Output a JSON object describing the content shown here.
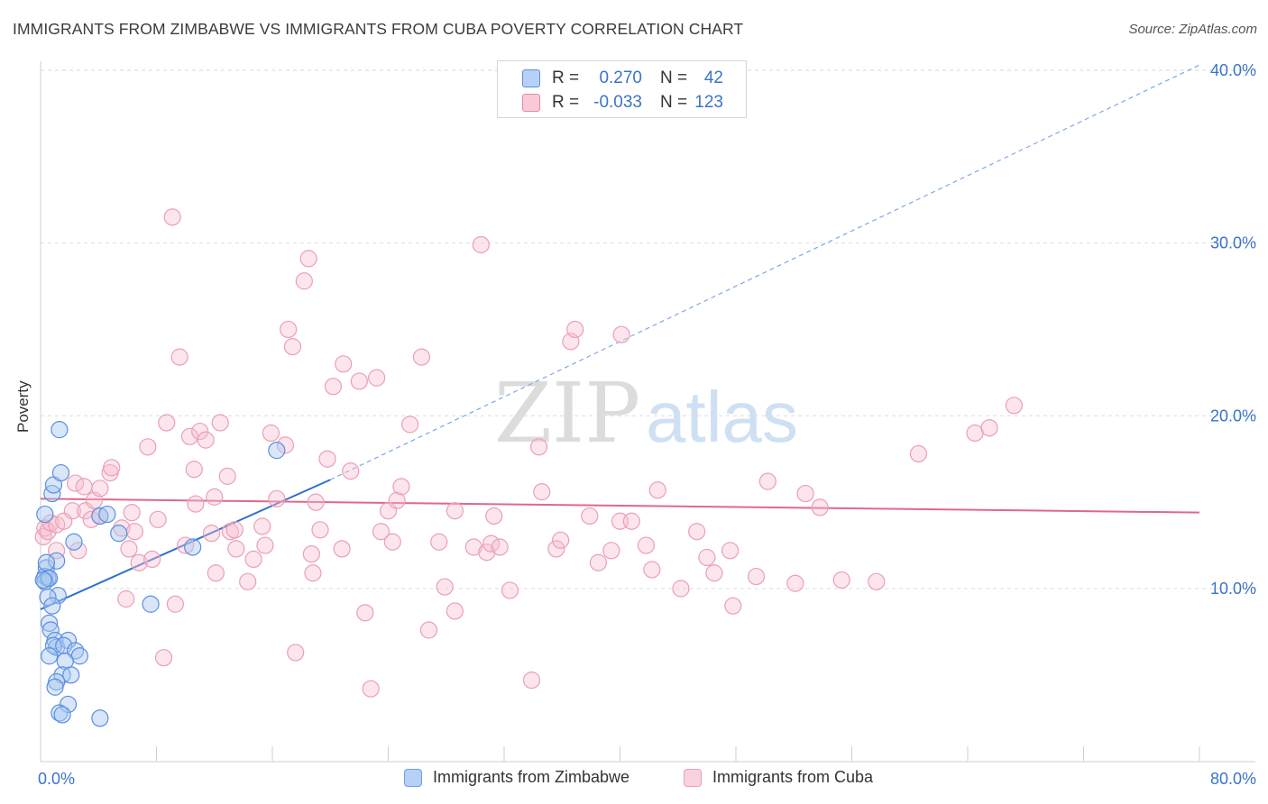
{
  "title": "IMMIGRANTS FROM ZIMBABWE VS IMMIGRANTS FROM CUBA POVERTY CORRELATION CHART",
  "source": "Source: ZipAtlas.com",
  "watermark": {
    "zip": "ZIP",
    "atlas": "atlas"
  },
  "stats": [
    {
      "r_label": "R =",
      "r_value": "0.270",
      "n_label": "N =",
      "n_value": "42",
      "color": "#5b8fe0",
      "fill": "#b7d0f5"
    },
    {
      "r_label": "R =",
      "r_value": "-0.033",
      "n_label": "N =",
      "n_value": "123",
      "color": "#e48aa6",
      "fill": "#f9c9d7"
    }
  ],
  "chart_data": {
    "type": "scatter",
    "title": "IMMIGRANTS FROM ZIMBABWE VS IMMIGRANTS FROM CUBA POVERTY CORRELATION CHART",
    "xlabel": "",
    "ylabel": "Poverty",
    "xlim": [
      0,
      80
    ],
    "ylim": [
      0,
      42
    ],
    "x_tick_labels": [
      "0.0%",
      "80.0%"
    ],
    "y_ticks": [
      10,
      20,
      30,
      40
    ],
    "y_tick_labels": [
      "10.0%",
      "20.0%",
      "30.0%",
      "40.0%"
    ],
    "grid": true,
    "legend_position": "bottom",
    "series": [
      {
        "name": "Immigrants from Zimbabwe",
        "color": "#3f7fd8",
        "fill": "#a9c7f0",
        "r": 0.27,
        "n": 42,
        "trend": {
          "x0": 0,
          "y0": 8.8,
          "x1": 20,
          "y1": 16.3,
          "dashed_to_x": 80,
          "dashed_to_y": 40.3
        },
        "points": [
          [
            0.3,
            14.3
          ],
          [
            0.4,
            11.2
          ],
          [
            0.3,
            10.7
          ],
          [
            0.5,
            10.6
          ],
          [
            0.3,
            10.4
          ],
          [
            0.6,
            10.6
          ],
          [
            0.8,
            15.5
          ],
          [
            0.9,
            16.0
          ],
          [
            1.1,
            11.6
          ],
          [
            1.2,
            9.6
          ],
          [
            0.5,
            9.5
          ],
          [
            0.8,
            9.0
          ],
          [
            0.6,
            8.0
          ],
          [
            0.7,
            7.6
          ],
          [
            1.0,
            7.0
          ],
          [
            1.1,
            6.6
          ],
          [
            0.9,
            6.7
          ],
          [
            1.9,
            7.0
          ],
          [
            1.6,
            6.7
          ],
          [
            2.4,
            6.4
          ],
          [
            2.7,
            6.1
          ],
          [
            0.6,
            6.1
          ],
          [
            1.7,
            5.8
          ],
          [
            1.5,
            5.0
          ],
          [
            2.1,
            5.0
          ],
          [
            1.1,
            4.6
          ],
          [
            1.0,
            4.3
          ],
          [
            1.9,
            3.3
          ],
          [
            1.3,
            2.8
          ],
          [
            1.5,
            2.7
          ],
          [
            4.1,
            2.5
          ],
          [
            1.3,
            19.2
          ],
          [
            1.4,
            16.7
          ],
          [
            2.3,
            12.7
          ],
          [
            4.1,
            14.2
          ],
          [
            4.6,
            14.3
          ],
          [
            5.4,
            13.2
          ],
          [
            7.6,
            9.1
          ],
          [
            10.5,
            12.4
          ],
          [
            16.3,
            18.0
          ],
          [
            0.4,
            11.5
          ],
          [
            0.2,
            10.5
          ]
        ]
      },
      {
        "name": "Immigrants from Cuba",
        "color": "#e86a93",
        "fill": "#f7bfd0",
        "r": -0.033,
        "n": 123,
        "trend": {
          "x0": 0,
          "y0": 15.2,
          "x1": 80,
          "y1": 14.4
        },
        "points": [
          [
            0.2,
            13.0
          ],
          [
            0.3,
            13.5
          ],
          [
            0.5,
            13.3
          ],
          [
            0.7,
            13.8
          ],
          [
            1.1,
            13.7
          ],
          [
            1.6,
            13.9
          ],
          [
            1.1,
            12.2
          ],
          [
            2.6,
            12.2
          ],
          [
            2.2,
            14.5
          ],
          [
            2.4,
            16.1
          ],
          [
            3.0,
            15.9
          ],
          [
            3.1,
            14.5
          ],
          [
            3.5,
            14.0
          ],
          [
            3.7,
            15.1
          ],
          [
            4.1,
            15.8
          ],
          [
            4.1,
            14.2
          ],
          [
            4.8,
            16.7
          ],
          [
            4.9,
            17.0
          ],
          [
            5.6,
            13.5
          ],
          [
            5.9,
            9.4
          ],
          [
            6.1,
            12.3
          ],
          [
            6.3,
            14.4
          ],
          [
            6.5,
            13.3
          ],
          [
            6.8,
            11.5
          ],
          [
            7.4,
            18.2
          ],
          [
            7.7,
            11.7
          ],
          [
            8.1,
            14.0
          ],
          [
            8.5,
            6.0
          ],
          [
            8.7,
            19.6
          ],
          [
            9.1,
            31.5
          ],
          [
            9.3,
            9.1
          ],
          [
            9.6,
            23.4
          ],
          [
            10.0,
            12.5
          ],
          [
            10.3,
            18.8
          ],
          [
            10.6,
            16.9
          ],
          [
            10.7,
            14.9
          ],
          [
            11.0,
            19.1
          ],
          [
            11.4,
            18.6
          ],
          [
            11.8,
            13.2
          ],
          [
            12.0,
            15.3
          ],
          [
            12.1,
            10.9
          ],
          [
            12.4,
            19.6
          ],
          [
            12.9,
            16.5
          ],
          [
            13.1,
            13.3
          ],
          [
            13.5,
            12.3
          ],
          [
            13.4,
            13.4
          ],
          [
            14.3,
            10.4
          ],
          [
            14.7,
            11.7
          ],
          [
            15.3,
            13.6
          ],
          [
            15.5,
            12.5
          ],
          [
            15.9,
            19.0
          ],
          [
            16.3,
            15.2
          ],
          [
            16.9,
            18.3
          ],
          [
            17.1,
            25.0
          ],
          [
            17.4,
            24.0
          ],
          [
            17.6,
            6.3
          ],
          [
            18.2,
            27.8
          ],
          [
            18.5,
            29.1
          ],
          [
            18.7,
            12.0
          ],
          [
            18.8,
            10.9
          ],
          [
            19.0,
            15.0
          ],
          [
            19.3,
            13.4
          ],
          [
            19.8,
            17.5
          ],
          [
            20.2,
            21.7
          ],
          [
            20.8,
            12.3
          ],
          [
            20.9,
            23.0
          ],
          [
            21.4,
            16.8
          ],
          [
            22.0,
            22.0
          ],
          [
            22.4,
            8.6
          ],
          [
            22.8,
            4.2
          ],
          [
            23.2,
            22.2
          ],
          [
            23.5,
            13.3
          ],
          [
            24.0,
            14.5
          ],
          [
            24.3,
            12.7
          ],
          [
            24.6,
            15.1
          ],
          [
            24.9,
            15.9
          ],
          [
            25.5,
            19.5
          ],
          [
            26.3,
            23.4
          ],
          [
            26.8,
            7.6
          ],
          [
            27.5,
            12.7
          ],
          [
            27.9,
            10.1
          ],
          [
            28.6,
            14.5
          ],
          [
            28.6,
            8.7
          ],
          [
            29.9,
            12.4
          ],
          [
            30.4,
            29.9
          ],
          [
            30.8,
            12.1
          ],
          [
            31.1,
            12.6
          ],
          [
            31.3,
            14.2
          ],
          [
            31.7,
            12.4
          ],
          [
            32.4,
            9.9
          ],
          [
            33.9,
            4.7
          ],
          [
            34.4,
            18.2
          ],
          [
            34.6,
            15.6
          ],
          [
            35.6,
            12.3
          ],
          [
            35.9,
            12.8
          ],
          [
            36.6,
            24.3
          ],
          [
            36.9,
            25.0
          ],
          [
            37.9,
            14.2
          ],
          [
            38.5,
            11.5
          ],
          [
            39.4,
            12.2
          ],
          [
            40.0,
            13.9
          ],
          [
            40.1,
            24.7
          ],
          [
            40.8,
            13.9
          ],
          [
            41.8,
            12.5
          ],
          [
            42.2,
            11.1
          ],
          [
            42.6,
            15.7
          ],
          [
            44.2,
            10.0
          ],
          [
            45.3,
            13.3
          ],
          [
            46.0,
            11.8
          ],
          [
            46.5,
            10.9
          ],
          [
            47.6,
            12.2
          ],
          [
            47.8,
            9.0
          ],
          [
            49.4,
            10.7
          ],
          [
            50.2,
            16.2
          ],
          [
            52.1,
            10.3
          ],
          [
            52.8,
            15.5
          ],
          [
            53.8,
            14.7
          ],
          [
            55.3,
            10.5
          ],
          [
            57.7,
            10.4
          ],
          [
            60.6,
            17.8
          ],
          [
            64.5,
            19.0
          ],
          [
            65.5,
            19.3
          ],
          [
            67.2,
            20.6
          ]
        ]
      }
    ]
  },
  "legend": [
    {
      "label": "Immigrants from Zimbabwe",
      "stroke": "#6f9ee6",
      "fill": "#b7d0f5"
    },
    {
      "label": "Immigrants from Cuba",
      "stroke": "#e9a0b6",
      "fill": "#fad1de"
    }
  ]
}
